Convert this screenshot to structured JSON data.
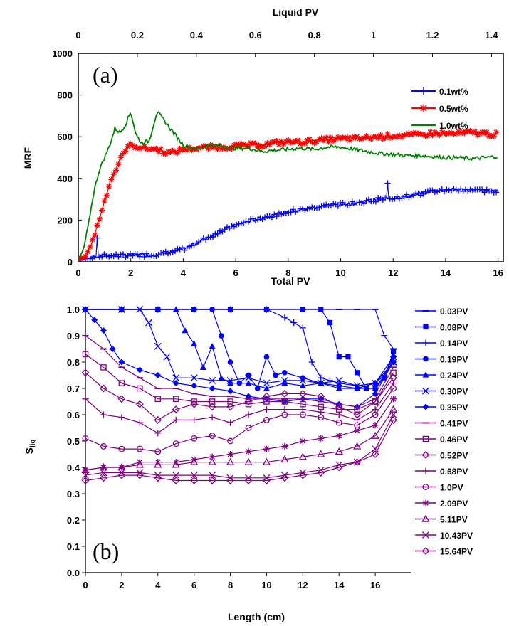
{
  "chart_data": [
    {
      "type": "line",
      "panel_label": "(a)",
      "xlabel": "Total PV",
      "ylabel": "MRF",
      "x2label": "Liquid PV",
      "xlim": [
        0,
        16.2
      ],
      "ylim": [
        0,
        1000
      ],
      "x2lim": [
        0,
        1.44
      ],
      "x_ticks": [
        "0",
        "2",
        "4",
        "6",
        "8",
        "10",
        "12",
        "14",
        "16"
      ],
      "y_ticks": [
        "0",
        "200",
        "400",
        "600",
        "800",
        "1000"
      ],
      "x2_ticks": [
        "0",
        "0.2",
        "0.4",
        "0.6",
        "0.8",
        "1",
        "1.2",
        "1.4"
      ],
      "legend_position": "top-right",
      "series": [
        {
          "name": "0.1wt%",
          "color": "#0000ff",
          "marker": "plus",
          "x": [
            0,
            0.5,
            1,
            1.5,
            2,
            2.5,
            3,
            3.5,
            4,
            4.5,
            5,
            5.5,
            6,
            6.5,
            7,
            7.5,
            8,
            8.5,
            9,
            9.5,
            10,
            10.5,
            11,
            11.5,
            12,
            12.5,
            13,
            13.5,
            14,
            14.5,
            15,
            15.5,
            16
          ],
          "y": [
            5,
            20,
            30,
            30,
            30,
            32,
            35,
            45,
            60,
            90,
            120,
            150,
            175,
            195,
            210,
            225,
            240,
            250,
            260,
            270,
            275,
            280,
            290,
            300,
            305,
            315,
            325,
            340,
            345,
            345,
            345,
            340,
            340
          ]
        },
        {
          "name": "0.5wt%",
          "color": "#ff0000",
          "marker": "star",
          "x": [
            0,
            0.3,
            0.6,
            0.9,
            1.2,
            1.5,
            1.8,
            2,
            2.5,
            3,
            3.5,
            4,
            4.5,
            5,
            5.5,
            6,
            6.5,
            7,
            7.5,
            8,
            8.5,
            9,
            9.5,
            10,
            10.5,
            11,
            11.5,
            12,
            12.5,
            13,
            13.5,
            14,
            14.5,
            15,
            15.5,
            16
          ],
          "y": [
            10,
            30,
            120,
            250,
            380,
            460,
            540,
            560,
            545,
            540,
            520,
            540,
            545,
            550,
            550,
            555,
            560,
            560,
            570,
            575,
            575,
            580,
            585,
            590,
            590,
            595,
            600,
            605,
            605,
            610,
            615,
            615,
            615,
            620,
            615,
            610
          ]
        },
        {
          "name": "1.0wt%",
          "color": "#008000",
          "marker": "none",
          "x": [
            0,
            0.2,
            0.4,
            0.6,
            0.8,
            1,
            1.2,
            1.4,
            1.6,
            1.8,
            2,
            2.2,
            2.4,
            2.7,
            3,
            3.2,
            3.5,
            4,
            4.5,
            5,
            5.5,
            6,
            6.5,
            7,
            7.5,
            8,
            8.5,
            9,
            9.5,
            10,
            10.5,
            11,
            11.5,
            12,
            12.5,
            13,
            13.5,
            14,
            14.5,
            15,
            15.5,
            16
          ],
          "y": [
            10,
            60,
            190,
            340,
            440,
            500,
            560,
            640,
            620,
            660,
            720,
            610,
            570,
            580,
            720,
            690,
            640,
            560,
            540,
            560,
            555,
            545,
            545,
            530,
            535,
            540,
            545,
            540,
            550,
            550,
            540,
            530,
            520,
            515,
            510,
            510,
            505,
            500,
            500,
            495,
            500,
            505
          ]
        }
      ]
    },
    {
      "type": "line",
      "panel_label": "(b)",
      "xlabel": "Length (cm)",
      "ylabel": "Sliq",
      "ylabel_main": "S",
      "ylabel_sub": "liq",
      "xlim": [
        0,
        18
      ],
      "ylim": [
        0,
        1
      ],
      "x_ticks": [
        "0",
        "2",
        "4",
        "6",
        "8",
        "10",
        "12",
        "14",
        "16"
      ],
      "y_ticks": [
        "0.0",
        "0.1",
        "0.2",
        "0.3",
        "0.4",
        "0.5",
        "0.6",
        "0.7",
        "0.8",
        "0.9",
        "1.0"
      ],
      "legend_position": "right",
      "series": [
        {
          "name": "0.03PV",
          "color": "#0000ff",
          "marker": "dash",
          "x": [
            0,
            2,
            4,
            6,
            8,
            10,
            12,
            14,
            15,
            16,
            16.5,
            17
          ],
          "y": [
            1.0,
            1.0,
            1.0,
            1.0,
            1.0,
            1.0,
            1.0,
            1.0,
            1.0,
            1.0,
            0.9,
            0.85
          ]
        },
        {
          "name": "0.08PV",
          "color": "#0000ff",
          "marker": "square",
          "x": [
            0,
            2,
            4,
            6,
            8,
            10,
            12,
            13,
            13.5,
            14,
            14.5,
            15,
            15.5,
            16,
            16.5,
            17
          ],
          "y": [
            1.0,
            1.0,
            1.0,
            1.0,
            1.0,
            1.0,
            1.0,
            1.0,
            0.95,
            0.82,
            0.82,
            0.76,
            0.7,
            0.7,
            0.74,
            0.84
          ]
        },
        {
          "name": "0.14PV",
          "color": "#0000ff",
          "marker": "plus",
          "x": [
            0,
            2,
            4,
            6,
            8,
            10,
            11,
            11.5,
            12,
            12.5,
            13,
            13.5,
            14,
            15,
            16,
            16.5,
            17
          ],
          "y": [
            1.0,
            1.0,
            1.0,
            1.0,
            1.0,
            1.0,
            0.97,
            0.95,
            0.93,
            0.8,
            0.74,
            0.73,
            0.72,
            0.71,
            0.72,
            0.75,
            0.82
          ]
        },
        {
          "name": "0.19PV",
          "color": "#0000ff",
          "marker": "circle",
          "x": [
            0,
            2,
            4,
            6,
            7,
            7.5,
            8,
            8.5,
            9,
            9.5,
            10,
            10.5,
            11,
            12,
            13,
            14,
            15,
            16,
            17
          ],
          "y": [
            1.0,
            1.0,
            1.0,
            1.0,
            1.0,
            0.9,
            0.8,
            0.72,
            0.75,
            0.7,
            0.82,
            0.75,
            0.76,
            0.74,
            0.72,
            0.71,
            0.7,
            0.72,
            0.82
          ]
        },
        {
          "name": "0.24PV",
          "color": "#0000ff",
          "marker": "triangle",
          "x": [
            0,
            2,
            4,
            5,
            5.5,
            6,
            6.5,
            7,
            7.5,
            8,
            9,
            10,
            11,
            12,
            13,
            14,
            15,
            16,
            17
          ],
          "y": [
            1.0,
            1.0,
            1.0,
            1.0,
            0.92,
            0.87,
            0.78,
            0.86,
            0.74,
            0.72,
            0.72,
            0.7,
            0.72,
            0.71,
            0.72,
            0.7,
            0.7,
            0.7,
            0.8
          ]
        },
        {
          "name": "0.30PV",
          "color": "#0000ff",
          "marker": "x",
          "x": [
            0,
            2,
            3,
            3.5,
            4,
            4.5,
            5,
            6,
            7,
            8,
            9,
            10,
            11,
            12,
            13,
            14,
            15,
            16,
            17
          ],
          "y": [
            1.0,
            1.0,
            1.0,
            0.95,
            0.86,
            0.82,
            0.74,
            0.74,
            0.73,
            0.73,
            0.74,
            0.72,
            0.73,
            0.73,
            0.72,
            0.73,
            0.71,
            0.72,
            0.8
          ]
        },
        {
          "name": "0.35PV",
          "color": "#0000ff",
          "marker": "diamond",
          "x": [
            0,
            0.5,
            1,
            1.5,
            2,
            3,
            4,
            5,
            6,
            7,
            8,
            9,
            10,
            11,
            12,
            13,
            14,
            15,
            16,
            17
          ],
          "y": [
            1.0,
            0.96,
            0.92,
            0.85,
            0.8,
            0.77,
            0.75,
            0.72,
            0.71,
            0.7,
            0.69,
            0.67,
            0.66,
            0.65,
            0.66,
            0.66,
            0.64,
            0.63,
            0.68,
            0.8
          ]
        },
        {
          "name": "0.41PV",
          "color": "#800080",
          "marker": "dash",
          "x": [
            0,
            1,
            2,
            3,
            4,
            5,
            6,
            7,
            8,
            9,
            10,
            11,
            12,
            13,
            14,
            15,
            16,
            17
          ],
          "y": [
            0.9,
            0.85,
            0.78,
            0.74,
            0.7,
            0.7,
            0.68,
            0.67,
            0.67,
            0.66,
            0.66,
            0.66,
            0.66,
            0.65,
            0.64,
            0.63,
            0.66,
            0.78
          ]
        },
        {
          "name": "0.46PV",
          "color": "#800080",
          "marker": "square",
          "x": [
            0,
            1,
            2,
            3,
            4,
            5,
            6,
            7,
            8,
            9,
            10,
            11,
            12,
            13,
            14,
            15,
            16,
            17
          ],
          "y": [
            0.83,
            0.78,
            0.72,
            0.7,
            0.66,
            0.66,
            0.65,
            0.65,
            0.65,
            0.64,
            0.65,
            0.65,
            0.64,
            0.63,
            0.62,
            0.62,
            0.65,
            0.76
          ]
        },
        {
          "name": "0.52PV",
          "color": "#800080",
          "marker": "diamond",
          "x": [
            0,
            1,
            2,
            3,
            4,
            5,
            6,
            7,
            8,
            9,
            10,
            11,
            12,
            13,
            14,
            15,
            16,
            17
          ],
          "y": [
            0.76,
            0.7,
            0.66,
            0.64,
            0.58,
            0.62,
            0.64,
            0.63,
            0.63,
            0.65,
            0.67,
            0.68,
            0.68,
            0.67,
            0.63,
            0.6,
            0.65,
            0.74
          ]
        },
        {
          "name": "0.68PV",
          "color": "#800080",
          "marker": "plus",
          "x": [
            0,
            1,
            2,
            3,
            4,
            5,
            6,
            7,
            8,
            9,
            10,
            11,
            12,
            13,
            14,
            15,
            16,
            17
          ],
          "y": [
            0.66,
            0.6,
            0.59,
            0.57,
            0.53,
            0.58,
            0.58,
            0.59,
            0.57,
            0.6,
            0.62,
            0.62,
            0.62,
            0.61,
            0.6,
            0.58,
            0.62,
            0.72
          ]
        },
        {
          "name": "1.0PV",
          "color": "#800080",
          "marker": "circle",
          "x": [
            0,
            1,
            2,
            3,
            4,
            5,
            6,
            7,
            8,
            9,
            10,
            11,
            12,
            13,
            14,
            15,
            16,
            17
          ],
          "y": [
            0.51,
            0.48,
            0.47,
            0.47,
            0.46,
            0.49,
            0.51,
            0.52,
            0.5,
            0.55,
            0.58,
            0.6,
            0.6,
            0.59,
            0.57,
            0.56,
            0.6,
            0.7
          ]
        },
        {
          "name": "2.09PV",
          "color": "#800080",
          "marker": "star",
          "x": [
            0,
            1,
            2,
            3,
            4,
            5,
            6,
            7,
            8,
            9,
            10,
            11,
            12,
            13,
            14,
            15,
            16,
            17
          ],
          "y": [
            0.39,
            0.4,
            0.4,
            0.42,
            0.42,
            0.42,
            0.43,
            0.44,
            0.45,
            0.46,
            0.47,
            0.48,
            0.5,
            0.51,
            0.52,
            0.54,
            0.56,
            0.66
          ]
        },
        {
          "name": "5.11PV",
          "color": "#800080",
          "marker": "triangle",
          "x": [
            0,
            1,
            2,
            3,
            4,
            5,
            6,
            7,
            8,
            9,
            10,
            11,
            12,
            13,
            14,
            15,
            16,
            17
          ],
          "y": [
            0.39,
            0.4,
            0.4,
            0.41,
            0.41,
            0.41,
            0.42,
            0.42,
            0.42,
            0.42,
            0.42,
            0.43,
            0.44,
            0.45,
            0.46,
            0.48,
            0.52,
            0.62
          ]
        },
        {
          "name": "10.43PV",
          "color": "#800080",
          "marker": "x",
          "x": [
            0,
            1,
            2,
            3,
            4,
            5,
            6,
            7,
            8,
            9,
            10,
            11,
            12,
            13,
            14,
            15,
            16,
            17
          ],
          "y": [
            0.37,
            0.38,
            0.38,
            0.38,
            0.37,
            0.37,
            0.37,
            0.37,
            0.36,
            0.36,
            0.36,
            0.37,
            0.38,
            0.39,
            0.41,
            0.42,
            0.47,
            0.6
          ]
        },
        {
          "name": "15.64PV",
          "color": "#800080",
          "marker": "diamond-open",
          "x": [
            0,
            1,
            2,
            3,
            4,
            5,
            6,
            7,
            8,
            9,
            10,
            11,
            12,
            13,
            14,
            15,
            16,
            17
          ],
          "y": [
            0.35,
            0.36,
            0.37,
            0.37,
            0.36,
            0.35,
            0.35,
            0.35,
            0.35,
            0.35,
            0.35,
            0.36,
            0.37,
            0.38,
            0.4,
            0.42,
            0.45,
            0.58
          ]
        }
      ]
    }
  ]
}
